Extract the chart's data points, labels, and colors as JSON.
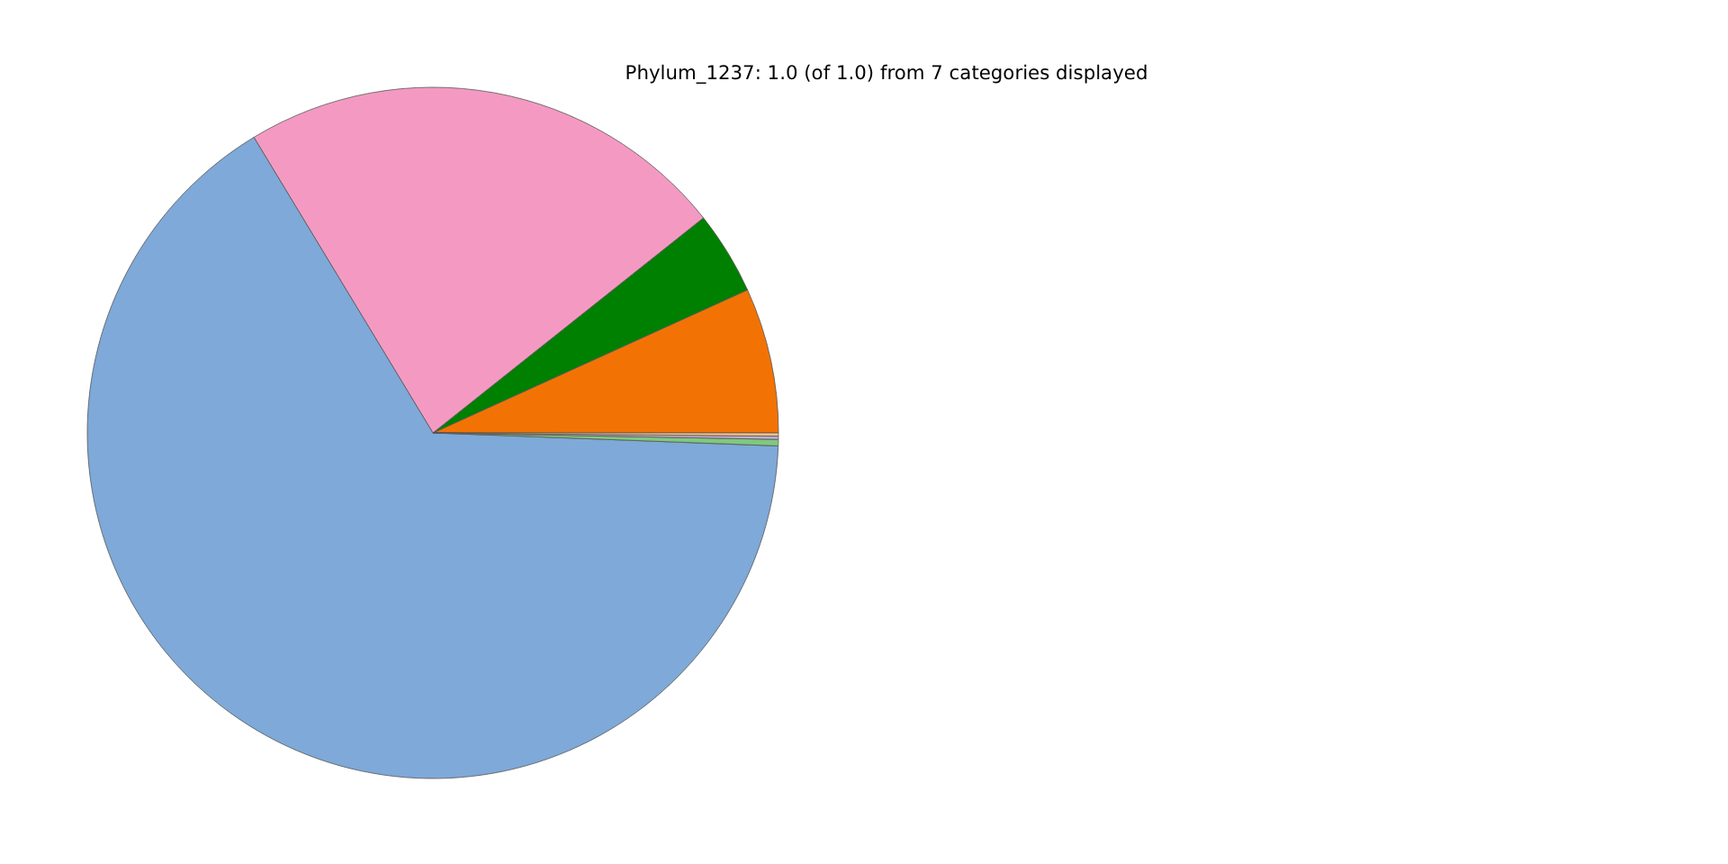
{
  "chart_data": {
    "type": "pie",
    "title": "Phylum_1237: 1.0 (of 1.0) from 7 categories displayed",
    "categories": [
      null,
      null,
      null,
      null,
      null,
      null,
      null
    ],
    "values": [
      6.8,
      3.9,
      23.0,
      65.8,
      0.3,
      0.15,
      0.15
    ],
    "colors": [
      "#f27304",
      "#008000",
      "#f49ac2",
      "#7ea9d8",
      "#7fc97f",
      "#beaed4",
      "#fdc086"
    ]
  }
}
